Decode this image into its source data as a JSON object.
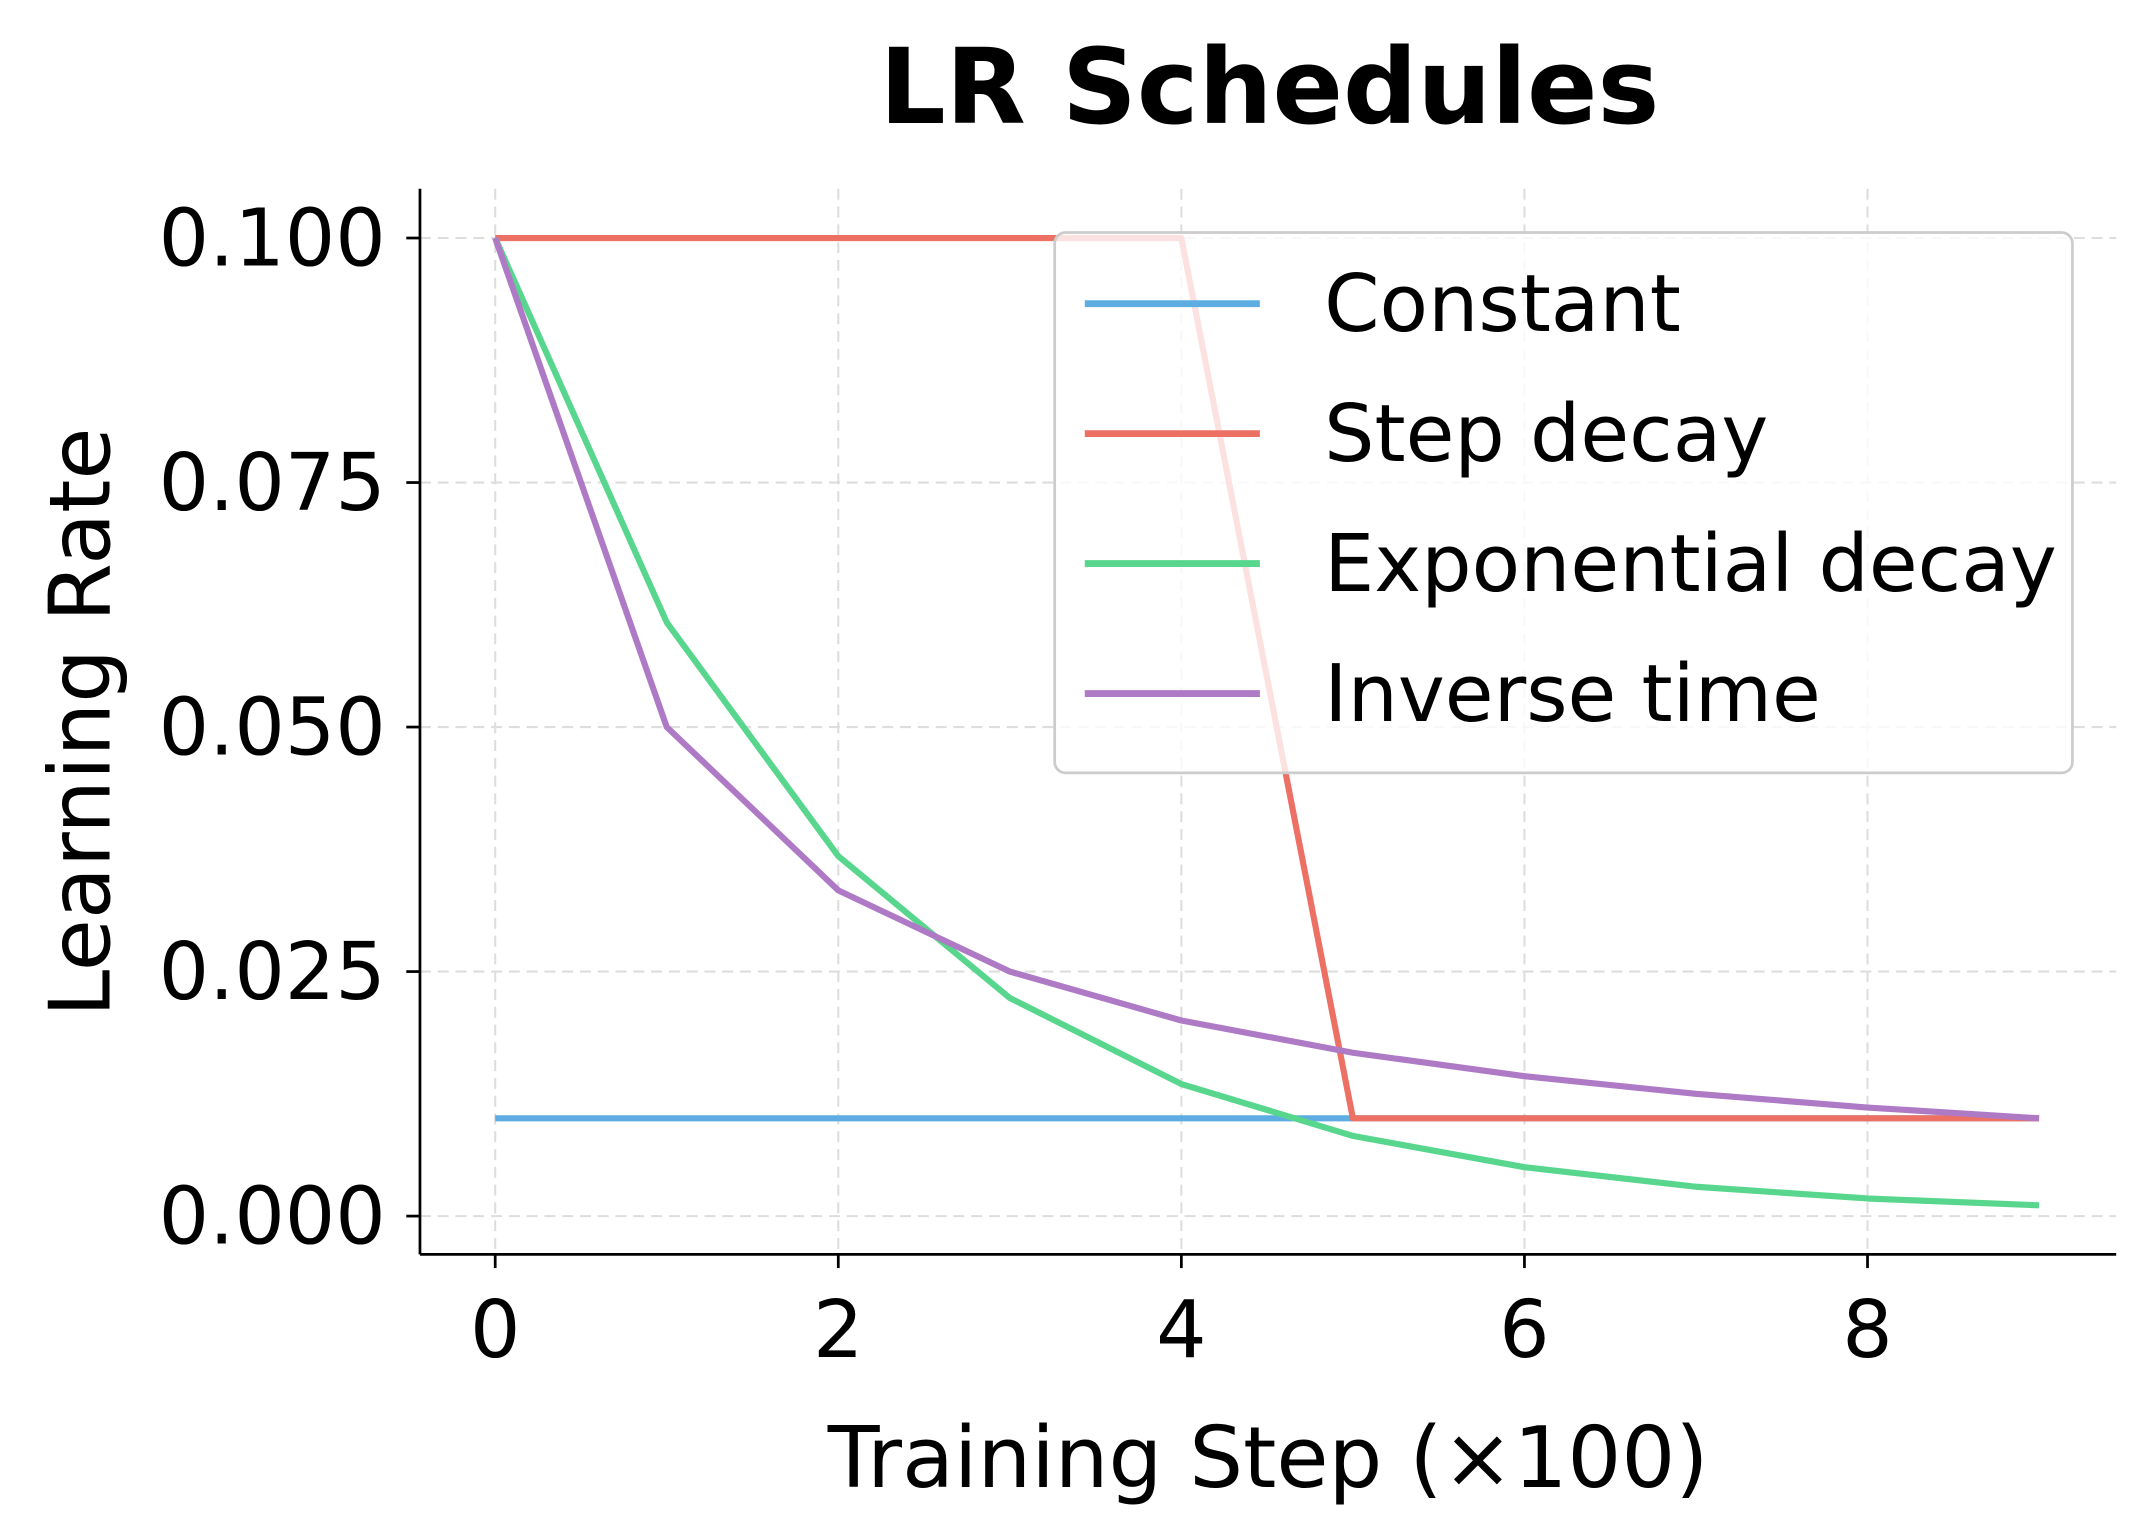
{
  "chart_data": {
    "type": "line",
    "title": "LR Schedules",
    "xlabel": "Training Step (×100)",
    "ylabel": "Learning Rate",
    "xlim": [
      -0.45,
      9.45
    ],
    "ylim": [
      -0.004,
      0.105
    ],
    "xticks": [
      0,
      2,
      4,
      6,
      8
    ],
    "xtick_labels": [
      "0",
      "2",
      "4",
      "6",
      "8"
    ],
    "yticks": [
      0,
      0.025,
      0.05,
      0.075,
      0.1
    ],
    "ytick_labels": [
      "0.000",
      "0.025",
      "0.050",
      "0.075",
      "0.100"
    ],
    "grid": true,
    "legend_position": "top-right",
    "x": [
      0,
      1,
      2,
      3,
      4,
      5,
      6,
      7,
      8,
      9
    ],
    "series": [
      {
        "name": "Constant",
        "color": "#5dade2",
        "values": [
          0.01,
          0.01,
          0.01,
          0.01,
          0.01,
          0.01,
          0.01,
          0.01,
          0.01,
          0.01
        ]
      },
      {
        "name": "Step decay",
        "color": "#ec7063",
        "values": [
          0.1,
          0.1,
          0.1,
          0.1,
          0.1,
          0.01,
          0.01,
          0.01,
          0.01,
          0.01
        ]
      },
      {
        "name": "Exponential decay",
        "color": "#58d68d",
        "values": [
          0.1,
          0.0607,
          0.0368,
          0.0223,
          0.0135,
          0.0082,
          0.005,
          0.003,
          0.0018,
          0.0011
        ]
      },
      {
        "name": "Inverse time",
        "color": "#af7ac5",
        "values": [
          0.1,
          0.05,
          0.0333,
          0.025,
          0.02,
          0.0167,
          0.0143,
          0.0125,
          0.0111,
          0.01
        ]
      }
    ]
  }
}
